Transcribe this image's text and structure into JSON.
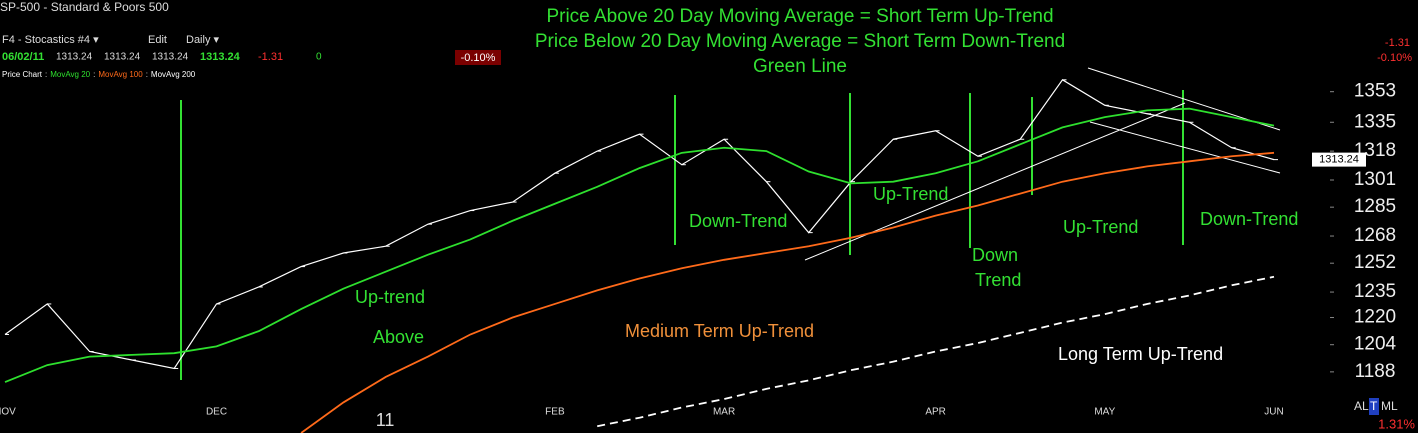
{
  "header": {
    "symbol": "SP-500 - Standard & Poors 500",
    "study": "F4 - Stocastics #4 ▾",
    "edit": "Edit",
    "period": "Daily ▾",
    "date": "06/02/11",
    "open": "1313.24",
    "high": "1313.24",
    "low": "1313.24",
    "close": "1313.24",
    "change": "-1.31",
    "volume": "0",
    "change_pct_box": "-0.10%",
    "right_change": "-1.31",
    "right_change_pct": "-0.10%",
    "modes": [
      "AL",
      "T",
      "ML"
    ],
    "bottom_pct": "1.31%"
  },
  "chart_data": {
    "type": "line",
    "title": [
      "Price Above 20 Day Moving Average = Short Term Up-Trend",
      "Price Below 20 Day Moving Average = Short Term Down-Trend",
      "Green Line"
    ],
    "title_color": "#33e033",
    "legend_separator": ":",
    "categories": [
      "NOV",
      null,
      null,
      null,
      null,
      "DEC",
      null,
      null,
      null,
      "11",
      null,
      null,
      null,
      "FEB",
      null,
      null,
      null,
      "MAR",
      null,
      null,
      null,
      null,
      "APR",
      null,
      null,
      null,
      "MAY",
      null,
      null,
      null,
      "JUN"
    ],
    "series": [
      {
        "name": "Price Chart",
        "color": "#ffffff",
        "values": [
          1210,
          1228,
          1200,
          1195,
          1190,
          1228,
          1238,
          1250,
          1258,
          1262,
          1275,
          1283,
          1288,
          1305,
          1318,
          1328,
          1310,
          1325,
          1300,
          1270,
          1300,
          1325,
          1330,
          1315,
          1325,
          1360,
          1345,
          1340,
          1335,
          1320,
          1313
        ]
      },
      {
        "name": "MovAvg 20",
        "color": "#2ee02e",
        "values": [
          1182,
          1192,
          1197,
          1198,
          1199,
          1203,
          1212,
          1225,
          1237,
          1247,
          1257,
          1266,
          1277,
          1287,
          1297,
          1308,
          1317,
          1320,
          1318,
          1306,
          1299,
          1300,
          1305,
          1312,
          1322,
          1332,
          1338,
          1342,
          1343,
          1338,
          1333
        ]
      },
      {
        "name": "MovAvg 100",
        "color": "#ff6a1a",
        "values": [
          null,
          null,
          null,
          null,
          null,
          null,
          null,
          1152,
          1170,
          1185,
          1197,
          1210,
          1220,
          1228,
          1236,
          1243,
          1249,
          1254,
          1258,
          1262,
          1267,
          1273,
          1280,
          1286,
          1293,
          1300,
          1305,
          1309,
          1312,
          1315,
          1317
        ]
      },
      {
        "name": "MovAvg 200",
        "color": "#ffffff",
        "dashed": true,
        "values": [
          null,
          null,
          null,
          null,
          null,
          null,
          null,
          null,
          null,
          null,
          null,
          null,
          null,
          null,
          1156,
          1161,
          1167,
          1172,
          1178,
          1183,
          1189,
          1194,
          1200,
          1205,
          1211,
          1217,
          1222,
          1228,
          1233,
          1239,
          1244
        ]
      }
    ],
    "last_label": "1313.24",
    "ylim": [
      1152,
      1407
    ],
    "yticks": [
      1188,
      1204,
      1220,
      1235,
      1252,
      1268,
      1285,
      1301,
      1318,
      1335,
      1353
    ],
    "annotations": [
      {
        "text": "Up-trend",
        "color": "#33e033"
      },
      {
        "text": "Above",
        "color": "#33e033"
      },
      {
        "text": "Down-Trend",
        "color": "#33e033"
      },
      {
        "text": "Up-Trend",
        "color": "#33e033"
      },
      {
        "text": "Down",
        "color": "#33e033"
      },
      {
        "text": "Trend",
        "color": "#33e033"
      },
      {
        "text": "Up-Trend",
        "color": "#33e033"
      },
      {
        "text": "Down-Trend",
        "color": "#33e033"
      },
      {
        "text": "Medium Term Up-Trend",
        "color": "#f0903a"
      },
      {
        "text": "Long Term Up-Trend",
        "color": "#ffffff"
      }
    ]
  }
}
